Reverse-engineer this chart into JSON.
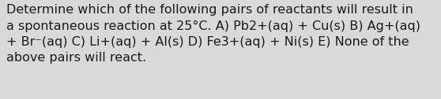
{
  "text": "Determine which of the following pairs of reactants will result in\na spontaneous reaction at 25°C. A) Pb2+(aq) + Cu(s) B) Ag+(aq)\n+ Br⁻(aq) C) Li+(aq) + Al(s) D) Fe3+(aq) + Ni(s) E) None of the\nabove pairs will react.",
  "background_color": "#d9d9d9",
  "text_color": "#1a1a1a",
  "font_size": 11.5,
  "fig_width": 5.58,
  "fig_height": 1.26,
  "dpi": 100
}
